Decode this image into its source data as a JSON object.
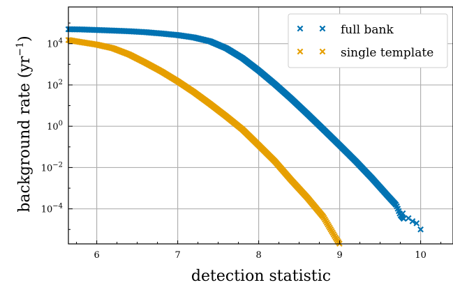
{
  "chart_data": {
    "type": "scatter",
    "title": "",
    "xlabel": "detection statistic",
    "ylabel": "background rate (yr",
    "ylabel_sup": "−1",
    "ylabel_close": ")",
    "xlim": [
      5.65,
      10.4
    ],
    "ylim": [
      2e-06,
      600000
    ],
    "yscale": "log",
    "grid": true,
    "legend_position": "top-right",
    "x_ticks": [
      {
        "value": 6,
        "label": "6"
      },
      {
        "value": 7,
        "label": "7"
      },
      {
        "value": 8,
        "label": "8"
      },
      {
        "value": 9,
        "label": "9"
      },
      {
        "value": 10,
        "label": "10"
      }
    ],
    "y_ticks": [
      {
        "value": 0.0001,
        "base": "10",
        "exp": "−4"
      },
      {
        "value": 0.01,
        "base": "10",
        "exp": "−2"
      },
      {
        "value": 1,
        "base": "10",
        "exp": "0"
      },
      {
        "value": 100,
        "base": "10",
        "exp": "2"
      },
      {
        "value": 10000,
        "base": "10",
        "exp": "4"
      }
    ],
    "series": [
      {
        "name": "full bank",
        "color": "#0072b2",
        "marker": "x",
        "points": [
          [
            5.65,
            50000
          ],
          [
            5.8,
            49000
          ],
          [
            6.0,
            46000
          ],
          [
            6.2,
            43000
          ],
          [
            6.4,
            40000
          ],
          [
            6.6,
            36000
          ],
          [
            6.8,
            31000
          ],
          [
            7.0,
            26000
          ],
          [
            7.2,
            20000
          ],
          [
            7.4,
            13000
          ],
          [
            7.6,
            6000
          ],
          [
            7.8,
            2000
          ],
          [
            8.0,
            500
          ],
          [
            8.2,
            110
          ],
          [
            8.4,
            22
          ],
          [
            8.6,
            4
          ],
          [
            8.8,
            0.7
          ],
          [
            9.0,
            0.12
          ],
          [
            9.2,
            0.02
          ],
          [
            9.4,
            0.003
          ],
          [
            9.6,
            0.0004
          ],
          [
            9.7,
            0.00015
          ],
          [
            9.75,
            5e-05
          ],
          [
            9.8,
            3e-05
          ]
        ],
        "sparse_points": [
          [
            9.78,
            6e-05
          ],
          [
            9.85,
            3.5e-05
          ],
          [
            9.9,
            2.5e-05
          ],
          [
            9.95,
            2e-05
          ],
          [
            10.0,
            1e-05
          ]
        ]
      },
      {
        "name": "single template",
        "color": "#e69f00",
        "marker": "x",
        "points": [
          [
            5.65,
            15000
          ],
          [
            5.8,
            12000
          ],
          [
            6.0,
            9000
          ],
          [
            6.2,
            6000
          ],
          [
            6.4,
            3000
          ],
          [
            6.6,
            1200
          ],
          [
            6.8,
            450
          ],
          [
            7.0,
            150
          ],
          [
            7.2,
            45
          ],
          [
            7.4,
            12
          ],
          [
            7.6,
            3
          ],
          [
            7.8,
            0.7
          ],
          [
            8.0,
            0.12
          ],
          [
            8.2,
            0.02
          ],
          [
            8.4,
            0.0025
          ],
          [
            8.6,
            0.00035
          ],
          [
            8.8,
            4e-05
          ],
          [
            8.95,
            4e-06
          ],
          [
            9.0,
            2e-06
          ]
        ]
      }
    ]
  }
}
